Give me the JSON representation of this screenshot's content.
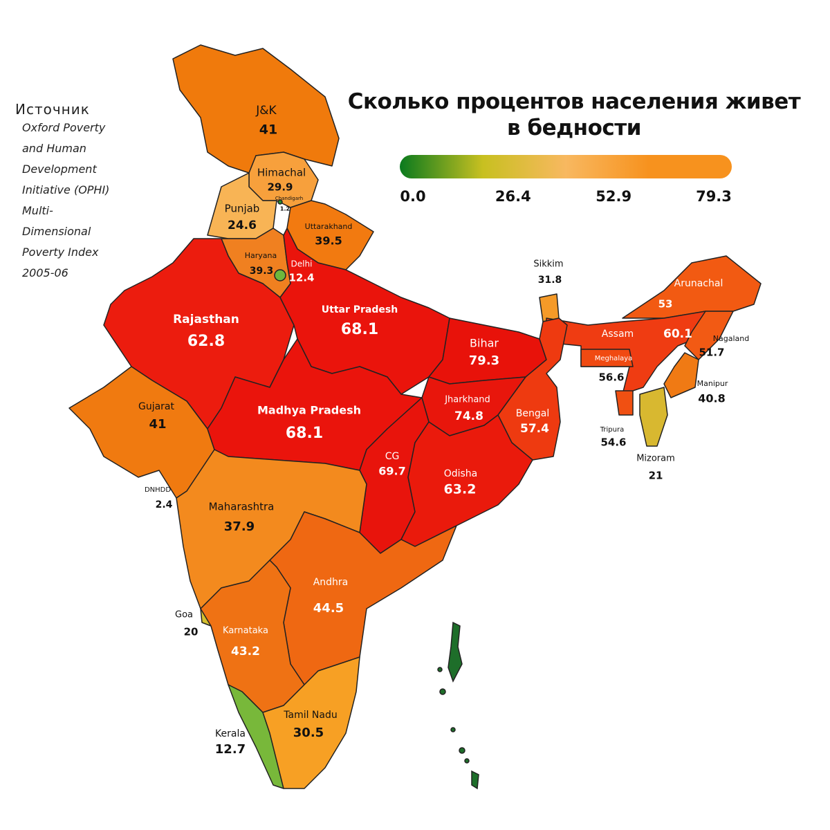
{
  "title": "Сколько процентов населения живет в бедности",
  "source": {
    "heading": "Источник",
    "text": "Oxford Poverty and Human Development Initiative (OPHI) Multi-Dimensional Poverty Index 2005-06"
  },
  "colorbar": {
    "range": [
      0,
      79.3
    ],
    "ticks": [
      {
        "value": 0,
        "label": "0.0"
      },
      26.4,
      52.9,
      79.3
    ],
    "colors": [
      "#0a7a1e",
      "#c8c020",
      "#f8b860",
      "#f7921e",
      "#f7921e"
    ]
  },
  "regions": [
    {
      "name": "J&K",
      "value": 41,
      "color": "#f07a0c"
    },
    {
      "name": "Himachal",
      "value": 29.9,
      "color": "#f7a03c"
    },
    {
      "name": "Chandigarh",
      "value": 1.2,
      "color": "#2a8a2a"
    },
    {
      "name": "Punjab",
      "value": 24.6,
      "color": "#f8b455"
    },
    {
      "name": "Uttarakhand",
      "value": 39.5,
      "color": "#f27a10"
    },
    {
      "name": "Haryana",
      "value": 39.3,
      "color": "#f08020"
    },
    {
      "name": "Delhi",
      "value": 12.4,
      "color": "#6db83c"
    },
    {
      "name": "Rajasthan",
      "value": 62.8,
      "color": "#ec1c0e"
    },
    {
      "name": "Uttar Pradesh",
      "value": 68.1,
      "color": "#ea140c"
    },
    {
      "name": "Bihar",
      "value": 79.3,
      "color": "#e8120a"
    },
    {
      "name": "Sikkim",
      "value": 31.8,
      "color": "#f59a28"
    },
    {
      "name": "Arunachal",
      "value": 53,
      "color": "#f25a12"
    },
    {
      "name": "Assam",
      "value": 60.1,
      "color": "#ef3c12"
    },
    {
      "name": "Nagaland",
      "value": 51.7,
      "color": "#f25a14"
    },
    {
      "name": "Meghalaya",
      "value": 56.6,
      "color": "#f04a12"
    },
    {
      "name": "Manipur",
      "value": 40.8,
      "color": "#f07a14"
    },
    {
      "name": "Tripura",
      "value": 54.6,
      "color": "#f05012"
    },
    {
      "name": "Mizoram",
      "value": 21,
      "color": "#d8b830"
    },
    {
      "name": "Gujarat",
      "value": 41,
      "color": "#f07a10"
    },
    {
      "name": "Madhya Pradesh",
      "value": 68.1,
      "color": "#ea140c"
    },
    {
      "name": "Jharkhand",
      "value": 74.8,
      "color": "#e8160c"
    },
    {
      "name": "Bengal",
      "value": 57.4,
      "color": "#ee3a10"
    },
    {
      "name": "CG",
      "value": 69.7,
      "color": "#e8140c"
    },
    {
      "name": "Odisha",
      "value": 63.2,
      "color": "#ea1a0c"
    },
    {
      "name": "DNHDD",
      "value": 2.4,
      "color": "#3a9a2a"
    },
    {
      "name": "Maharashtra",
      "value": 37.9,
      "color": "#f38a1e"
    },
    {
      "name": "Andhra",
      "value": 44.5,
      "color": "#ef6812"
    },
    {
      "name": "Goa",
      "value": 20,
      "color": "#d4c030"
    },
    {
      "name": "Karnataka",
      "value": 43.2,
      "color": "#ef7214"
    },
    {
      "name": "Kerala",
      "value": 12.7,
      "color": "#78b83a"
    },
    {
      "name": "Tamil Nadu",
      "value": 30.5,
      "color": "#f7a024"
    }
  ]
}
